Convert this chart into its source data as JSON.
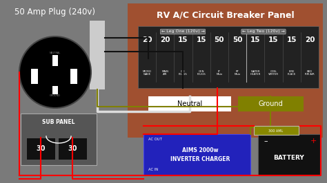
{
  "bg_color": "#7a7a7a",
  "title_50amp": "50 Amp Plug (240v)",
  "rv_panel_title": "RV A/C Circuit Breaker Panel",
  "rv_panel_bg": "#a05030",
  "leg_one_label": "← Leg One (120v) →",
  "leg_two_label": "← Leg Two (120v) →",
  "breaker_numbers_left": [
    "20",
    "20",
    "15",
    "15",
    "50",
    "50"
  ],
  "breaker_labels_left": [
    "MICRO\nWAVE",
    "MAIN\nAIR",
    "GFI\nPLUGS",
    "GEN\nPLUGS",
    "LT\nMain",
    "RT\nMain"
  ],
  "breaker_numbers_right": [
    "15",
    "15",
    "15",
    "20"
  ],
  "breaker_labels_right": [
    "WATER\nHEATER",
    "CON-\nVERTER",
    "FIRE\nPLACE",
    "BED\nRM AIR"
  ],
  "neutral_label": "Neutral",
  "ground_label": "Ground",
  "neutral_color": "#ffffff",
  "ground_color": "#808000",
  "sub_panel_label": "SUB PANEL",
  "sub_panel_bg": "#555555",
  "inverter_label": "AIMS 2000w\nINVERTER CHARGER",
  "inverter_bg": "#2222bb",
  "inverter_ac_out": "AC OUT",
  "inverter_ac_in": "AC IN",
  "battery_label": "BATTERY",
  "battery_bg": "#111111",
  "fuse_label": "300 AML",
  "wire_red": "#ff0000",
  "wire_black": "#111111",
  "wire_white": "#dddddd",
  "wire_yellow": "#808000"
}
